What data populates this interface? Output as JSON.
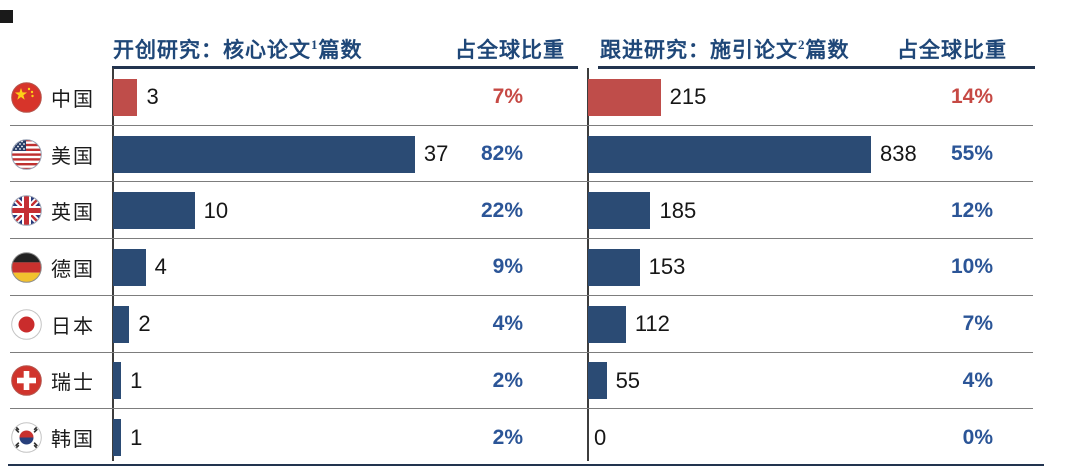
{
  "decor": {
    "corner_square_color": "#1a1a1a"
  },
  "colors": {
    "bar_blue": "#2b4b74",
    "bar_red": "#bf4d4a",
    "pct_blue": "#2b5597",
    "pct_red": "#c64944",
    "header_navy": "#1f4778",
    "separator": "#7d7d7d",
    "axis": "#3d3d3d",
    "rule": "#22344f"
  },
  "left_chart": {
    "title_prefix": "开创研究：核心论文",
    "title_sup": "1",
    "title_suffix": "篇数",
    "share_header": "占全球比重"
  },
  "right_chart": {
    "title_prefix": "跟进研究：施引论文",
    "title_sup": "2",
    "title_suffix": "篇数",
    "share_header": "占全球比重"
  },
  "rows": [
    {
      "country": "中国",
      "flag": "china",
      "core_papers": 3,
      "core_share": "7%",
      "citing_papers": 215,
      "citing_share": "14%",
      "highlight": true
    },
    {
      "country": "美国",
      "flag": "usa",
      "core_papers": 37,
      "core_share": "82%",
      "citing_papers": 838,
      "citing_share": "55%",
      "highlight": false
    },
    {
      "country": "英国",
      "flag": "uk",
      "core_papers": 10,
      "core_share": "22%",
      "citing_papers": 185,
      "citing_share": "12%",
      "highlight": false
    },
    {
      "country": "德国",
      "flag": "germany",
      "core_papers": 4,
      "core_share": "9%",
      "citing_papers": 153,
      "citing_share": "10%",
      "highlight": false
    },
    {
      "country": "日本",
      "flag": "japan",
      "core_papers": 2,
      "core_share": "4%",
      "citing_papers": 112,
      "citing_share": "7%",
      "highlight": false
    },
    {
      "country": "瑞士",
      "flag": "switzerland",
      "core_papers": 1,
      "core_share": "2%",
      "citing_papers": 55,
      "citing_share": "4%",
      "highlight": false
    },
    {
      "country": "韩国",
      "flag": "korea",
      "core_papers": 1,
      "core_share": "2%",
      "citing_papers": 0,
      "citing_share": "0%",
      "highlight": false
    }
  ],
  "chart_data": [
    {
      "type": "bar",
      "orientation": "horizontal",
      "title": "开创研究：核心论文1篇数",
      "share_column_header": "占全球比重",
      "categories": [
        "中国",
        "美国",
        "英国",
        "德国",
        "日本",
        "瑞士",
        "韩国"
      ],
      "values": [
        3,
        37,
        10,
        4,
        2,
        1,
        1
      ],
      "data_labels": [
        "3",
        "37",
        "10",
        "4",
        "2",
        "1",
        "1"
      ],
      "share_of_global": [
        "7%",
        "82%",
        "22%",
        "9%",
        "4%",
        "2%",
        "2%"
      ],
      "highlight_category": "中国",
      "highlight_color": "#bf4d4a",
      "bar_color": "#2b4b74",
      "xlim": [
        0,
        41
      ],
      "grid": false,
      "legend": "none"
    },
    {
      "type": "bar",
      "orientation": "horizontal",
      "title": "跟进研究：施引论文2篇数",
      "share_column_header": "占全球比重",
      "categories": [
        "中国",
        "美国",
        "英国",
        "德国",
        "日本",
        "瑞士",
        "韩国"
      ],
      "values": [
        215,
        838,
        185,
        153,
        112,
        55,
        0
      ],
      "data_labels": [
        "215",
        "838",
        "185",
        "153",
        "112",
        "55",
        "0"
      ],
      "share_of_global": [
        "14%",
        "55%",
        "12%",
        "10%",
        "7%",
        "4%",
        "0%"
      ],
      "highlight_category": "中国",
      "highlight_color": "#bf4d4a",
      "bar_color": "#2b4b74",
      "xlim": [
        0,
        920
      ],
      "grid": false,
      "legend": "none"
    }
  ]
}
